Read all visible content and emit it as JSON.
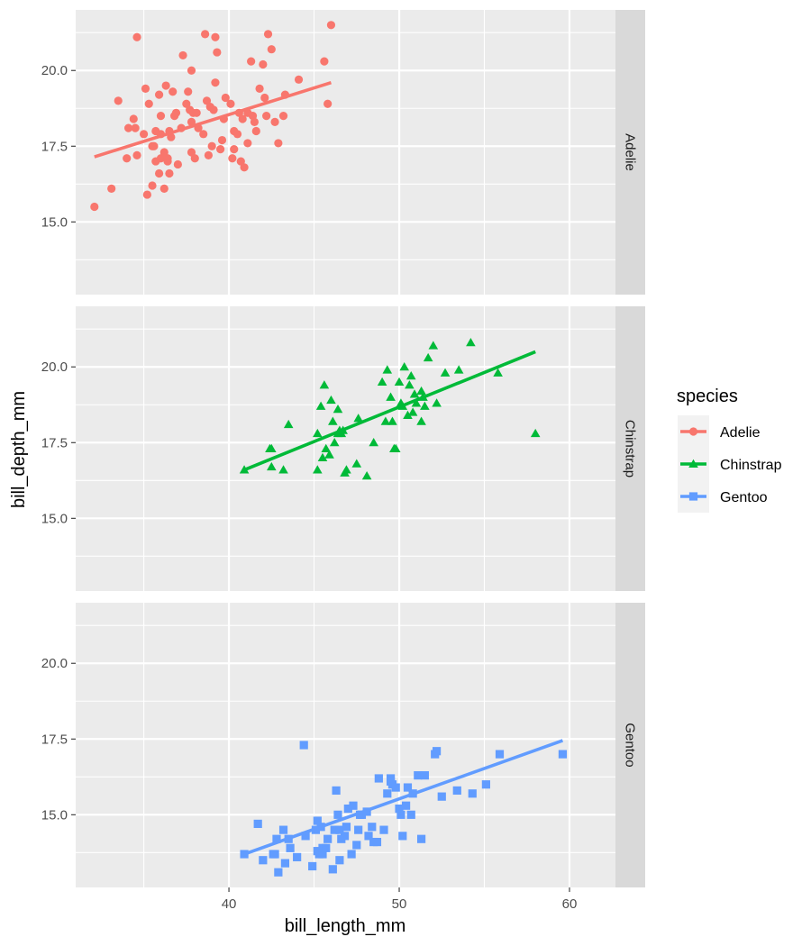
{
  "chart_data": {
    "type": "scatter",
    "xlabel": "bill_length_mm",
    "ylabel": "bill_depth_mm",
    "xlim": [
      31.0,
      62.7
    ],
    "ylim": [
      12.6,
      22.0
    ],
    "x_ticks": [
      40,
      50,
      60
    ],
    "x_tick_labels": [
      "40",
      "50",
      "60"
    ],
    "x_minor_ticks": [
      35,
      45,
      55
    ],
    "y_ticks": [
      15.0,
      17.5,
      20.0
    ],
    "y_tick_labels": [
      "15.0",
      "17.5",
      "20.0"
    ],
    "y_minor_ticks": [
      13.75,
      16.25,
      18.75,
      21.25
    ],
    "grid": true,
    "facet": "rows",
    "legend": {
      "title": "species",
      "placement": "right",
      "entries": [
        {
          "label": "Adelie",
          "color": "#F8766D",
          "shape": "circle"
        },
        {
          "label": "Chinstrap",
          "color": "#00BA38",
          "shape": "triangle"
        },
        {
          "label": "Gentoo",
          "color": "#619CFF",
          "shape": "square"
        }
      ]
    },
    "panels": [
      {
        "strip_label": "Adelie",
        "color": "#F8766D",
        "shape": "circle",
        "fit_line": {
          "x": [
            32.1,
            46.0
          ],
          "y": [
            17.15,
            19.6
          ]
        },
        "points": [
          [
            32.1,
            15.5
          ],
          [
            33.1,
            16.1
          ],
          [
            33.5,
            19.0
          ],
          [
            34.0,
            17.1
          ],
          [
            34.1,
            18.1
          ],
          [
            34.4,
            18.4
          ],
          [
            34.5,
            18.1
          ],
          [
            34.6,
            21.1
          ],
          [
            34.6,
            17.2
          ],
          [
            35.0,
            17.9
          ],
          [
            35.1,
            19.4
          ],
          [
            35.2,
            15.9
          ],
          [
            35.3,
            18.9
          ],
          [
            35.5,
            17.5
          ],
          [
            35.5,
            16.2
          ],
          [
            35.6,
            17.5
          ],
          [
            35.7,
            18.0
          ],
          [
            35.7,
            17.0
          ],
          [
            35.9,
            16.6
          ],
          [
            35.9,
            19.2
          ],
          [
            36.0,
            18.5
          ],
          [
            36.0,
            17.9
          ],
          [
            36.0,
            17.1
          ],
          [
            36.2,
            17.3
          ],
          [
            36.2,
            16.1
          ],
          [
            36.3,
            19.5
          ],
          [
            36.4,
            17.0
          ],
          [
            36.4,
            17.1
          ],
          [
            36.5,
            18.0
          ],
          [
            36.5,
            16.6
          ],
          [
            36.6,
            17.8
          ],
          [
            36.7,
            19.3
          ],
          [
            36.8,
            18.5
          ],
          [
            36.9,
            18.6
          ],
          [
            37.0,
            16.9
          ],
          [
            37.2,
            18.1
          ],
          [
            37.3,
            20.5
          ],
          [
            37.5,
            18.9
          ],
          [
            37.6,
            19.3
          ],
          [
            37.7,
            18.7
          ],
          [
            37.8,
            18.3
          ],
          [
            37.8,
            20.0
          ],
          [
            37.9,
            18.6
          ],
          [
            38.0,
            17.1
          ],
          [
            38.1,
            18.6
          ],
          [
            38.2,
            18.1
          ],
          [
            38.5,
            17.9
          ],
          [
            38.6,
            21.2
          ],
          [
            38.7,
            19.0
          ],
          [
            38.8,
            17.2
          ],
          [
            38.9,
            18.8
          ],
          [
            39.0,
            17.5
          ],
          [
            39.1,
            18.7
          ],
          [
            39.2,
            19.6
          ],
          [
            39.3,
            20.6
          ],
          [
            39.5,
            17.4
          ],
          [
            39.6,
            17.7
          ],
          [
            39.7,
            18.4
          ],
          [
            39.8,
            19.1
          ],
          [
            40.1,
            18.9
          ],
          [
            40.2,
            17.1
          ],
          [
            40.3,
            18.0
          ],
          [
            40.5,
            17.9
          ],
          [
            40.6,
            18.6
          ],
          [
            40.7,
            17.0
          ],
          [
            40.8,
            18.4
          ],
          [
            40.9,
            16.8
          ],
          [
            41.1,
            18.6
          ],
          [
            41.1,
            17.6
          ],
          [
            41.3,
            20.3
          ],
          [
            41.4,
            18.5
          ],
          [
            41.5,
            18.3
          ],
          [
            41.6,
            18.0
          ],
          [
            41.8,
            19.4
          ],
          [
            42.0,
            20.2
          ],
          [
            42.1,
            19.1
          ],
          [
            42.2,
            18.5
          ],
          [
            42.3,
            21.2
          ],
          [
            42.5,
            20.7
          ],
          [
            42.7,
            18.3
          ],
          [
            42.9,
            17.6
          ],
          [
            43.2,
            18.5
          ],
          [
            43.3,
            19.2
          ],
          [
            44.1,
            19.7
          ],
          [
            45.6,
            20.3
          ],
          [
            45.8,
            18.9
          ],
          [
            46.0,
            21.5
          ],
          [
            37.8,
            17.3
          ],
          [
            39.2,
            21.1
          ],
          [
            40.3,
            17.4
          ]
        ]
      },
      {
        "strip_label": "Chinstrap",
        "color": "#00BA38",
        "shape": "triangle",
        "fit_line": {
          "x": [
            40.9,
            58.0
          ],
          "y": [
            16.6,
            20.5
          ]
        },
        "points": [
          [
            40.9,
            16.6
          ],
          [
            42.4,
            17.3
          ],
          [
            42.5,
            16.7
          ],
          [
            42.5,
            17.3
          ],
          [
            43.2,
            16.6
          ],
          [
            43.5,
            18.1
          ],
          [
            45.2,
            17.8
          ],
          [
            45.2,
            16.6
          ],
          [
            45.4,
            18.7
          ],
          [
            45.5,
            17.0
          ],
          [
            45.6,
            19.4
          ],
          [
            45.7,
            17.3
          ],
          [
            45.9,
            17.1
          ],
          [
            46.0,
            18.9
          ],
          [
            46.1,
            18.2
          ],
          [
            46.2,
            17.5
          ],
          [
            46.4,
            17.8
          ],
          [
            46.4,
            18.6
          ],
          [
            46.5,
            17.9
          ],
          [
            46.6,
            17.8
          ],
          [
            46.7,
            17.9
          ],
          [
            46.8,
            16.5
          ],
          [
            46.9,
            16.6
          ],
          [
            47.5,
            16.8
          ],
          [
            47.6,
            18.3
          ],
          [
            48.1,
            16.4
          ],
          [
            48.5,
            17.5
          ],
          [
            49.0,
            19.5
          ],
          [
            49.2,
            18.2
          ],
          [
            49.3,
            19.9
          ],
          [
            49.5,
            19.0
          ],
          [
            49.6,
            18.2
          ],
          [
            49.7,
            17.3
          ],
          [
            50.0,
            19.5
          ],
          [
            50.1,
            18.8
          ],
          [
            50.2,
            18.7
          ],
          [
            50.3,
            20.0
          ],
          [
            50.5,
            18.4
          ],
          [
            50.6,
            19.4
          ],
          [
            50.7,
            19.7
          ],
          [
            50.8,
            18.5
          ],
          [
            50.9,
            19.1
          ],
          [
            51.0,
            18.8
          ],
          [
            51.3,
            19.2
          ],
          [
            51.4,
            19.0
          ],
          [
            51.5,
            18.7
          ],
          [
            51.7,
            20.3
          ],
          [
            52.0,
            20.7
          ],
          [
            52.2,
            18.8
          ],
          [
            52.7,
            19.8
          ],
          [
            53.5,
            19.9
          ],
          [
            54.2,
            20.8
          ],
          [
            55.8,
            19.8
          ],
          [
            58.0,
            17.8
          ],
          [
            49.8,
            17.3
          ],
          [
            51.3,
            18.2
          ]
        ]
      },
      {
        "strip_label": "Gentoo",
        "color": "#619CFF",
        "shape": "square",
        "fit_line": {
          "x": [
            40.9,
            59.6
          ],
          "y": [
            13.7,
            17.45
          ]
        },
        "points": [
          [
            40.9,
            13.7
          ],
          [
            41.7,
            14.7
          ],
          [
            42.0,
            13.5
          ],
          [
            42.6,
            13.7
          ],
          [
            42.7,
            13.7
          ],
          [
            42.8,
            14.2
          ],
          [
            42.9,
            13.1
          ],
          [
            43.2,
            14.5
          ],
          [
            43.3,
            13.4
          ],
          [
            43.5,
            14.2
          ],
          [
            43.6,
            13.9
          ],
          [
            44.0,
            13.6
          ],
          [
            44.4,
            17.3
          ],
          [
            44.5,
            14.3
          ],
          [
            44.9,
            13.3
          ],
          [
            45.1,
            14.5
          ],
          [
            45.2,
            13.8
          ],
          [
            45.2,
            14.8
          ],
          [
            45.3,
            13.7
          ],
          [
            45.4,
            14.6
          ],
          [
            45.5,
            13.7
          ],
          [
            45.5,
            13.9
          ],
          [
            45.7,
            13.9
          ],
          [
            45.8,
            14.2
          ],
          [
            46.1,
            13.2
          ],
          [
            46.2,
            14.5
          ],
          [
            46.3,
            15.8
          ],
          [
            46.4,
            15.0
          ],
          [
            46.5,
            13.5
          ],
          [
            46.5,
            14.5
          ],
          [
            46.6,
            14.2
          ],
          [
            46.8,
            14.3
          ],
          [
            46.9,
            14.6
          ],
          [
            47.0,
            15.2
          ],
          [
            47.2,
            13.7
          ],
          [
            47.3,
            15.3
          ],
          [
            47.5,
            14.0
          ],
          [
            47.6,
            14.5
          ],
          [
            47.7,
            15.0
          ],
          [
            47.8,
            15.0
          ],
          [
            48.1,
            15.1
          ],
          [
            48.2,
            14.3
          ],
          [
            48.4,
            14.6
          ],
          [
            48.5,
            14.1
          ],
          [
            48.7,
            14.1
          ],
          [
            49.1,
            14.5
          ],
          [
            49.3,
            15.7
          ],
          [
            49.5,
            16.1
          ],
          [
            49.6,
            16.0
          ],
          [
            49.8,
            15.9
          ],
          [
            50.0,
            15.2
          ],
          [
            50.1,
            15.0
          ],
          [
            50.2,
            14.3
          ],
          [
            50.4,
            15.3
          ],
          [
            50.5,
            15.9
          ],
          [
            50.7,
            15.0
          ],
          [
            50.8,
            15.7
          ],
          [
            51.1,
            16.3
          ],
          [
            51.3,
            14.2
          ],
          [
            51.5,
            16.3
          ],
          [
            52.1,
            17.0
          ],
          [
            52.2,
            17.1
          ],
          [
            52.5,
            15.6
          ],
          [
            53.4,
            15.8
          ],
          [
            54.3,
            15.7
          ],
          [
            55.1,
            16.0
          ],
          [
            55.9,
            17.0
          ],
          [
            59.6,
            17.0
          ],
          [
            49.5,
            16.2
          ],
          [
            48.8,
            16.2
          ]
        ]
      }
    ]
  }
}
